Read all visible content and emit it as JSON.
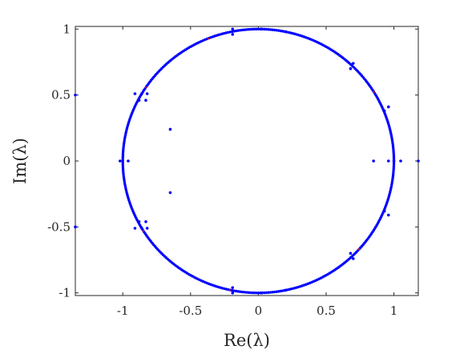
{
  "chart_data": {
    "type": "scatter",
    "title": "",
    "xlabel": "Re(λ)",
    "ylabel": "Im(λ)",
    "xlim": [
      -1.35,
      1.18
    ],
    "ylim": [
      -1.02,
      1.02
    ],
    "x_ticks": [
      -1,
      -0.5,
      0,
      0.5,
      1
    ],
    "x_tick_labels": [
      "-1",
      "-0.5",
      "0",
      "0.5",
      "1"
    ],
    "y_ticks": [
      -1,
      -0.5,
      0,
      0.5,
      1
    ],
    "y_tick_labels": [
      "-1",
      "-0.5",
      "0",
      "0.5",
      "1"
    ],
    "grid": false,
    "box": true,
    "colors": {
      "points": "#0000ff",
      "accent": "#ff0000",
      "axes": "#262626"
    },
    "unit_circle_eigenvalues": {
      "count": 420,
      "radius": 1
    },
    "series": [
      {
        "values": [
          [
            -1.35,
            0.5
          ],
          [
            -1.35,
            -0.5
          ],
          [
            1.18,
            0.0
          ],
          [
            0.85,
            0.0
          ],
          [
            1.05,
            0.0
          ],
          [
            -1.02,
            0.0
          ],
          [
            -0.96,
            0.0
          ],
          [
            0.96,
            0.0
          ],
          [
            1.0,
            0.0
          ],
          [
            -0.65,
            0.24
          ],
          [
            -0.65,
            -0.24
          ],
          [
            -0.91,
            0.51
          ],
          [
            -0.86,
            0.51
          ],
          [
            -0.83,
            0.46
          ],
          [
            -0.88,
            0.46
          ],
          [
            -0.82,
            0.51
          ],
          [
            -0.91,
            -0.51
          ],
          [
            -0.86,
            -0.51
          ],
          [
            -0.83,
            -0.46
          ],
          [
            -0.88,
            -0.46
          ],
          [
            -0.82,
            -0.51
          ],
          [
            0.93,
            0.38
          ],
          [
            0.96,
            0.41
          ],
          [
            0.93,
            -0.38
          ],
          [
            0.96,
            -0.41
          ],
          [
            0.7,
            0.74
          ],
          [
            0.68,
            0.7
          ],
          [
            0.7,
            -0.74
          ],
          [
            0.68,
            -0.7
          ],
          [
            -0.19,
            1.0
          ],
          [
            -0.19,
            0.96
          ],
          [
            -0.19,
            -1.0
          ],
          [
            -0.19,
            -0.96
          ],
          [
            0.2,
            0.98
          ],
          [
            0.2,
            -0.98
          ],
          [
            0.02,
            1.0
          ],
          [
            0.02,
            -1.0
          ]
        ]
      }
    ]
  }
}
